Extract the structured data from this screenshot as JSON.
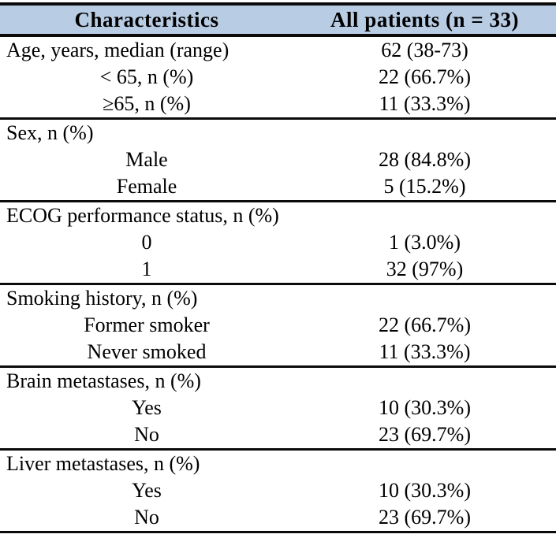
{
  "table": {
    "header_bg": "#b8cce4",
    "rule_color": "#0b0b0b",
    "header": {
      "col1": "Characteristics",
      "col2": "All patients (n = 33)"
    },
    "sections": [
      {
        "rows": [
          {
            "label": "Age, years, median (range)",
            "value": "62 (38-73)",
            "align": "left"
          },
          {
            "label": "< 65, n (%)",
            "value": "22 (66.7%)",
            "align": "center"
          },
          {
            "label": "≥65, n (%)",
            "value": "11 (33.3%)",
            "align": "center"
          }
        ]
      },
      {
        "rows": [
          {
            "label": "Sex, n (%)",
            "value": "",
            "align": "left"
          },
          {
            "label": "Male",
            "value": "28 (84.8%)",
            "align": "center"
          },
          {
            "label": "Female",
            "value": "5 (15.2%)",
            "align": "center"
          }
        ]
      },
      {
        "rows": [
          {
            "label": "ECOG performance status, n (%)",
            "value": "",
            "align": "left"
          },
          {
            "label": "0",
            "value": "1 (3.0%)",
            "align": "center"
          },
          {
            "label": "1",
            "value": "32 (97%)",
            "align": "center"
          }
        ]
      },
      {
        "rows": [
          {
            "label": "Smoking history, n (%)",
            "value": "",
            "align": "left"
          },
          {
            "label": "Former smoker",
            "value": "22 (66.7%)",
            "align": "center"
          },
          {
            "label": "Never smoked",
            "value": "11 (33.3%)",
            "align": "center"
          }
        ]
      },
      {
        "rows": [
          {
            "label": "Brain metastases, n (%)",
            "value": "",
            "align": "left"
          },
          {
            "label": "Yes",
            "value": "10 (30.3%)",
            "align": "center"
          },
          {
            "label": "No",
            "value": "23 (69.7%)",
            "align": "center"
          }
        ]
      },
      {
        "rows": [
          {
            "label": "Liver metastases, n (%)",
            "value": "",
            "align": "left"
          },
          {
            "label": "Yes",
            "value": "10 (30.3%)",
            "align": "center"
          },
          {
            "label": "No",
            "value": "23 (69.7%)",
            "align": "center"
          }
        ]
      }
    ]
  }
}
